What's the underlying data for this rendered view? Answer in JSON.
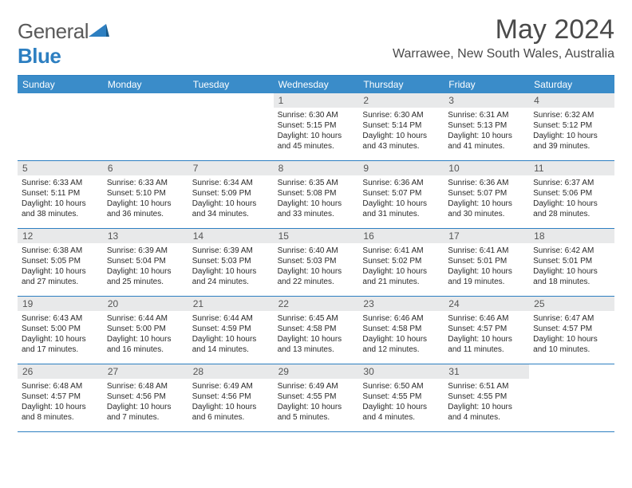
{
  "brand": {
    "name_a": "General",
    "name_b": "Blue"
  },
  "title": "May 2024",
  "location": "Warrawee, New South Wales, Australia",
  "colors": {
    "header_bg": "#3a8cc9",
    "header_border": "#2d7fc1",
    "daynum_bg": "#e8e9ea",
    "text": "#333333",
    "brand_gray": "#5a5a5a",
    "brand_blue": "#2d7fc1"
  },
  "day_headers": [
    "Sunday",
    "Monday",
    "Tuesday",
    "Wednesday",
    "Thursday",
    "Friday",
    "Saturday"
  ],
  "weeks": [
    [
      {
        "empty": true
      },
      {
        "empty": true
      },
      {
        "empty": true
      },
      {
        "n": "1",
        "sr": "6:30 AM",
        "ss": "5:15 PM",
        "dl": "10 hours and 45 minutes."
      },
      {
        "n": "2",
        "sr": "6:30 AM",
        "ss": "5:14 PM",
        "dl": "10 hours and 43 minutes."
      },
      {
        "n": "3",
        "sr": "6:31 AM",
        "ss": "5:13 PM",
        "dl": "10 hours and 41 minutes."
      },
      {
        "n": "4",
        "sr": "6:32 AM",
        "ss": "5:12 PM",
        "dl": "10 hours and 39 minutes."
      }
    ],
    [
      {
        "n": "5",
        "sr": "6:33 AM",
        "ss": "5:11 PM",
        "dl": "10 hours and 38 minutes."
      },
      {
        "n": "6",
        "sr": "6:33 AM",
        "ss": "5:10 PM",
        "dl": "10 hours and 36 minutes."
      },
      {
        "n": "7",
        "sr": "6:34 AM",
        "ss": "5:09 PM",
        "dl": "10 hours and 34 minutes."
      },
      {
        "n": "8",
        "sr": "6:35 AM",
        "ss": "5:08 PM",
        "dl": "10 hours and 33 minutes."
      },
      {
        "n": "9",
        "sr": "6:36 AM",
        "ss": "5:07 PM",
        "dl": "10 hours and 31 minutes."
      },
      {
        "n": "10",
        "sr": "6:36 AM",
        "ss": "5:07 PM",
        "dl": "10 hours and 30 minutes."
      },
      {
        "n": "11",
        "sr": "6:37 AM",
        "ss": "5:06 PM",
        "dl": "10 hours and 28 minutes."
      }
    ],
    [
      {
        "n": "12",
        "sr": "6:38 AM",
        "ss": "5:05 PM",
        "dl": "10 hours and 27 minutes."
      },
      {
        "n": "13",
        "sr": "6:39 AM",
        "ss": "5:04 PM",
        "dl": "10 hours and 25 minutes."
      },
      {
        "n": "14",
        "sr": "6:39 AM",
        "ss": "5:03 PM",
        "dl": "10 hours and 24 minutes."
      },
      {
        "n": "15",
        "sr": "6:40 AM",
        "ss": "5:03 PM",
        "dl": "10 hours and 22 minutes."
      },
      {
        "n": "16",
        "sr": "6:41 AM",
        "ss": "5:02 PM",
        "dl": "10 hours and 21 minutes."
      },
      {
        "n": "17",
        "sr": "6:41 AM",
        "ss": "5:01 PM",
        "dl": "10 hours and 19 minutes."
      },
      {
        "n": "18",
        "sr": "6:42 AM",
        "ss": "5:01 PM",
        "dl": "10 hours and 18 minutes."
      }
    ],
    [
      {
        "n": "19",
        "sr": "6:43 AM",
        "ss": "5:00 PM",
        "dl": "10 hours and 17 minutes."
      },
      {
        "n": "20",
        "sr": "6:44 AM",
        "ss": "5:00 PM",
        "dl": "10 hours and 16 minutes."
      },
      {
        "n": "21",
        "sr": "6:44 AM",
        "ss": "4:59 PM",
        "dl": "10 hours and 14 minutes."
      },
      {
        "n": "22",
        "sr": "6:45 AM",
        "ss": "4:58 PM",
        "dl": "10 hours and 13 minutes."
      },
      {
        "n": "23",
        "sr": "6:46 AM",
        "ss": "4:58 PM",
        "dl": "10 hours and 12 minutes."
      },
      {
        "n": "24",
        "sr": "6:46 AM",
        "ss": "4:57 PM",
        "dl": "10 hours and 11 minutes."
      },
      {
        "n": "25",
        "sr": "6:47 AM",
        "ss": "4:57 PM",
        "dl": "10 hours and 10 minutes."
      }
    ],
    [
      {
        "n": "26",
        "sr": "6:48 AM",
        "ss": "4:57 PM",
        "dl": "10 hours and 8 minutes."
      },
      {
        "n": "27",
        "sr": "6:48 AM",
        "ss": "4:56 PM",
        "dl": "10 hours and 7 minutes."
      },
      {
        "n": "28",
        "sr": "6:49 AM",
        "ss": "4:56 PM",
        "dl": "10 hours and 6 minutes."
      },
      {
        "n": "29",
        "sr": "6:49 AM",
        "ss": "4:55 PM",
        "dl": "10 hours and 5 minutes."
      },
      {
        "n": "30",
        "sr": "6:50 AM",
        "ss": "4:55 PM",
        "dl": "10 hours and 4 minutes."
      },
      {
        "n": "31",
        "sr": "6:51 AM",
        "ss": "4:55 PM",
        "dl": "10 hours and 4 minutes."
      },
      {
        "empty": true
      }
    ]
  ],
  "labels": {
    "sunrise": "Sunrise:",
    "sunset": "Sunset:",
    "daylight": "Daylight:"
  }
}
